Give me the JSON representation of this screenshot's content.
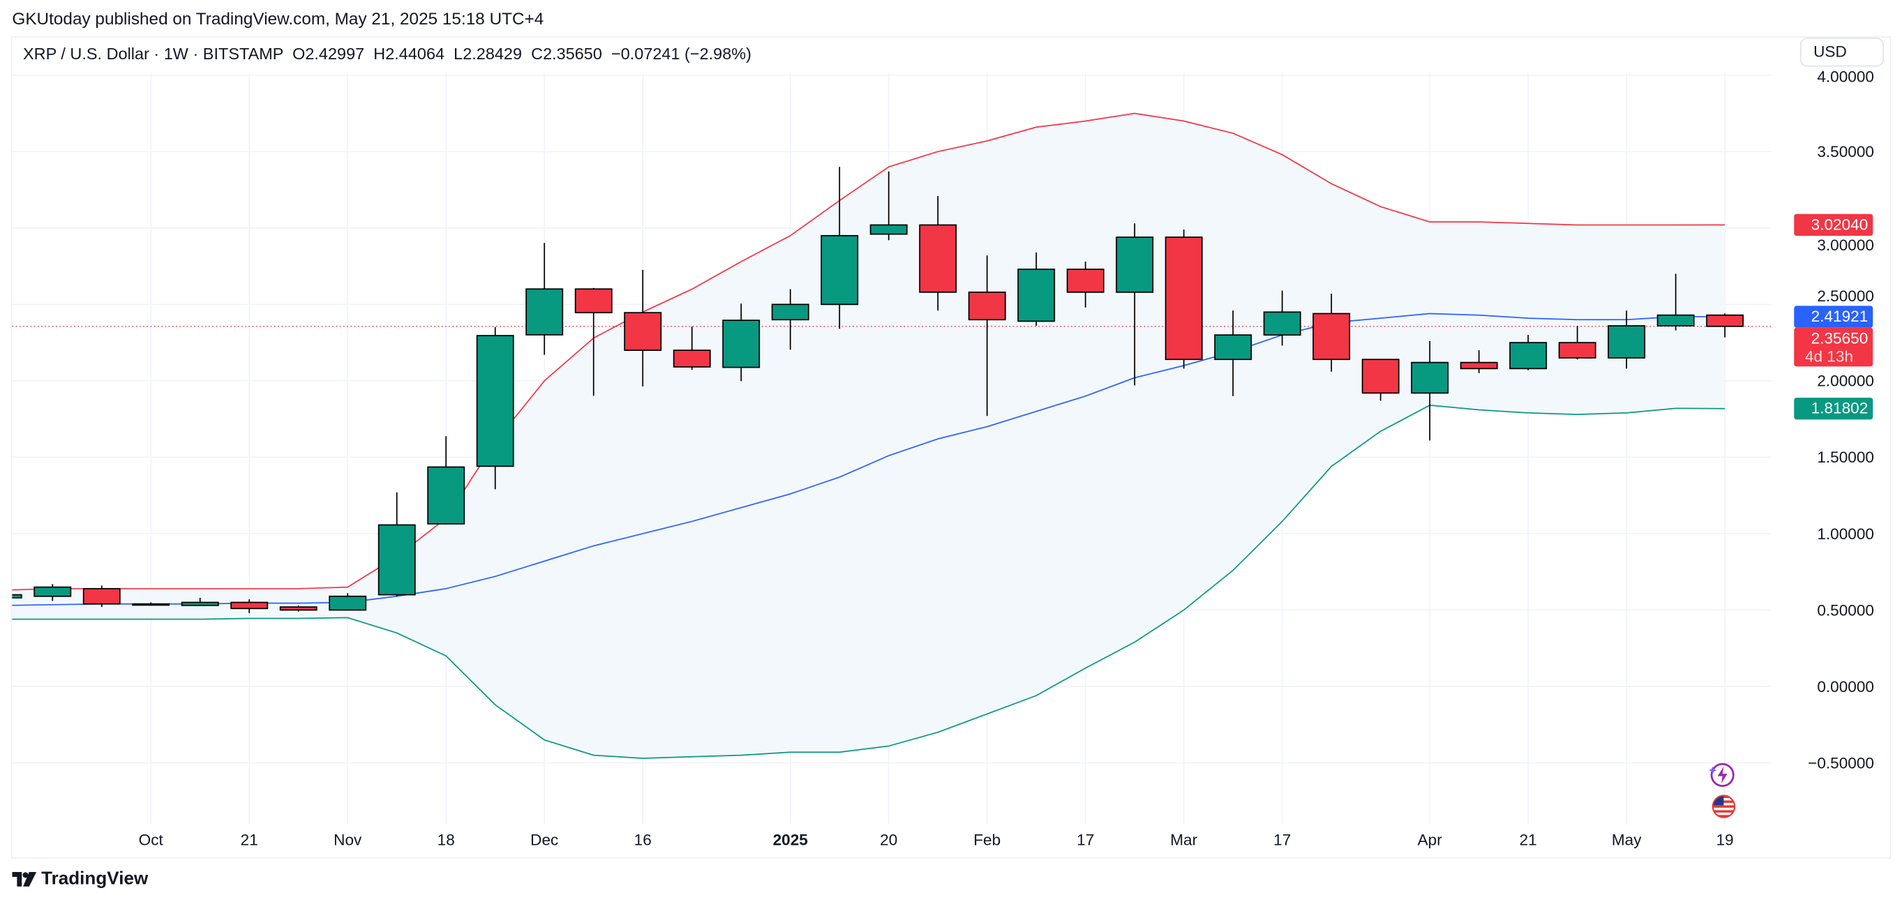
{
  "header": {
    "published": "GKUtoday published on TradingView.com, May 21, 2025 15:18 UTC+4"
  },
  "legend": {
    "symbol": "XRP / U.S. Dollar · 1W · BITSTAMP",
    "open": "O2.42997",
    "high": "H2.44064",
    "low": "L2.28429",
    "close": "C2.35650",
    "change": "−0.07241 (−2.98%)"
  },
  "currency_button": "USD",
  "footer": {
    "logo_text": "TradingView"
  },
  "icons": [
    "lightning-icon",
    "us-flag-icon",
    "tradingview-logo-icon"
  ],
  "colors": {
    "up": "#089981",
    "down": "#f23645",
    "upper_band": "#f23645",
    "middle_band": "#2962ff",
    "lower_band": "#089981",
    "band_fill": "#f3f8fd"
  },
  "chart_data": {
    "type": "candlestick",
    "title": "",
    "ylim": [
      -0.9,
      4.0
    ],
    "grid": true,
    "y_ticks": [
      "4.00000",
      "3.50000",
      "3.00000",
      "2.50000",
      "2.00000",
      "1.50000",
      "1.00000",
      "0.50000",
      "0.00000",
      "−0.50000"
    ],
    "y_tick_values": [
      4.0,
      3.5,
      3.0,
      2.5,
      2.0,
      1.5,
      1.0,
      0.5,
      0.0,
      -0.5
    ],
    "x_ticks": [
      {
        "label": "Oct",
        "week": "2024-10-07",
        "bold": false
      },
      {
        "label": "21",
        "week": "2024-10-21",
        "bold": false
      },
      {
        "label": "Nov",
        "week": "2024-11-04",
        "bold": false
      },
      {
        "label": "18",
        "week": "2024-11-18",
        "bold": false
      },
      {
        "label": "Dec",
        "week": "2024-12-02",
        "bold": false
      },
      {
        "label": "16",
        "week": "2024-12-16",
        "bold": false
      },
      {
        "label": "2025",
        "week": "2025-01-06",
        "bold": true
      },
      {
        "label": "20",
        "week": "2025-01-20",
        "bold": false
      },
      {
        "label": "Feb",
        "week": "2025-02-03",
        "bold": false
      },
      {
        "label": "17",
        "week": "2025-02-17",
        "bold": false
      },
      {
        "label": "Mar",
        "week": "2025-03-03",
        "bold": false
      },
      {
        "label": "17",
        "week": "2025-03-17",
        "bold": false
      },
      {
        "label": "Apr",
        "week": "2025-04-07",
        "bold": false
      },
      {
        "label": "21",
        "week": "2025-04-21",
        "bold": false
      },
      {
        "label": "May",
        "week": "2025-05-05",
        "bold": false
      },
      {
        "label": "19",
        "week": "2025-05-19",
        "bold": false
      }
    ],
    "weeks": [
      "2024-09-16",
      "2024-09-23",
      "2024-09-30",
      "2024-10-07",
      "2024-10-14",
      "2024-10-21",
      "2024-10-28",
      "2024-11-04",
      "2024-11-11",
      "2024-11-18",
      "2024-11-25",
      "2024-12-02",
      "2024-12-09",
      "2024-12-16",
      "2024-12-23",
      "2024-12-30",
      "2025-01-06",
      "2025-01-13",
      "2025-01-20",
      "2025-01-27",
      "2025-02-03",
      "2025-02-10",
      "2025-02-17",
      "2025-02-24",
      "2025-03-03",
      "2025-03-10",
      "2025-03-17",
      "2025-03-24",
      "2025-03-31",
      "2025-04-07",
      "2025-04-14",
      "2025-04-21",
      "2025-04-28",
      "2025-05-05",
      "2025-05-12",
      "2025-05-19"
    ],
    "ohlc_fields": [
      "open",
      "high",
      "low",
      "close"
    ],
    "ohlc": [
      [
        0.58,
        0.61,
        0.57,
        0.6
      ],
      [
        0.59,
        0.67,
        0.56,
        0.65
      ],
      [
        0.64,
        0.66,
        0.52,
        0.54
      ],
      [
        0.54,
        0.55,
        0.53,
        0.54
      ],
      [
        0.53,
        0.58,
        0.53,
        0.55
      ],
      [
        0.55,
        0.57,
        0.48,
        0.51
      ],
      [
        0.52,
        0.53,
        0.49,
        0.5
      ],
      [
        0.5,
        0.61,
        0.5,
        0.59
      ],
      [
        0.6,
        1.27,
        0.59,
        1.057
      ],
      [
        1.064,
        1.638,
        1.06,
        1.436
      ],
      [
        1.441,
        2.352,
        1.29,
        2.296
      ],
      [
        2.301,
        2.902,
        2.17,
        2.601
      ],
      [
        2.601,
        2.608,
        1.902,
        2.446
      ],
      [
        2.446,
        2.726,
        1.963,
        2.2
      ],
      [
        2.2,
        2.355,
        2.072,
        2.091
      ],
      [
        2.088,
        2.505,
        1.998,
        2.396
      ],
      [
        2.4,
        2.6,
        2.204,
        2.5
      ],
      [
        2.5,
        3.4,
        2.34,
        2.95
      ],
      [
        2.96,
        3.37,
        2.92,
        3.02
      ],
      [
        3.02,
        3.21,
        2.46,
        2.58
      ],
      [
        2.58,
        2.82,
        1.77,
        2.4
      ],
      [
        2.39,
        2.84,
        2.36,
        2.73
      ],
      [
        2.73,
        2.78,
        2.48,
        2.58
      ],
      [
        2.58,
        3.03,
        1.97,
        2.94
      ],
      [
        2.94,
        2.99,
        2.08,
        2.14
      ],
      [
        2.14,
        2.46,
        1.9,
        2.3
      ],
      [
        2.3,
        2.59,
        2.23,
        2.45
      ],
      [
        2.44,
        2.57,
        2.06,
        2.14
      ],
      [
        2.14,
        2.14,
        1.87,
        1.92
      ],
      [
        1.92,
        2.26,
        1.61,
        2.12
      ],
      [
        2.12,
        2.2,
        2.05,
        2.08
      ],
      [
        2.08,
        2.3,
        2.07,
        2.25
      ],
      [
        2.25,
        2.36,
        2.14,
        2.15
      ],
      [
        2.15,
        2.46,
        2.08,
        2.36
      ],
      [
        2.36,
        2.7,
        2.33,
        2.43
      ],
      [
        2.42997,
        2.44064,
        2.28429,
        2.3565
      ]
    ],
    "bollinger": {
      "upper": [
        0.63,
        0.64,
        0.64,
        0.64,
        0.64,
        0.64,
        0.64,
        0.65,
        0.85,
        1.1,
        1.6,
        2.0,
        2.28,
        2.45,
        2.6,
        2.78,
        2.95,
        3.18,
        3.4,
        3.5,
        3.57,
        3.66,
        3.7,
        3.75,
        3.7,
        3.62,
        3.48,
        3.29,
        3.14,
        3.04,
        3.04,
        3.03,
        3.02,
        3.02,
        3.02,
        3.0204
      ],
      "middle": [
        0.53,
        0.535,
        0.54,
        0.54,
        0.54,
        0.545,
        0.545,
        0.55,
        0.59,
        0.64,
        0.72,
        0.82,
        0.92,
        1.0,
        1.08,
        1.17,
        1.26,
        1.37,
        1.51,
        1.62,
        1.7,
        1.8,
        1.9,
        2.02,
        2.1,
        2.19,
        2.3,
        2.38,
        2.41,
        2.44,
        2.43,
        2.41,
        2.4,
        2.4,
        2.42,
        2.41921
      ],
      "lower": [
        0.44,
        0.44,
        0.44,
        0.44,
        0.44,
        0.445,
        0.445,
        0.45,
        0.35,
        0.2,
        -0.12,
        -0.35,
        -0.45,
        -0.47,
        -0.46,
        -0.45,
        -0.43,
        -0.43,
        -0.39,
        -0.3,
        -0.18,
        -0.06,
        0.12,
        0.29,
        0.5,
        0.76,
        1.08,
        1.44,
        1.67,
        1.84,
        1.81,
        1.79,
        1.78,
        1.79,
        1.82,
        1.81802
      ]
    },
    "price_labels": {
      "upper": {
        "text": "3.02040",
        "value": 3.0204,
        "color": "#f23645"
      },
      "middle": {
        "text": "2.41921",
        "value": 2.41921,
        "color": "#2962ff"
      },
      "last": {
        "text": "2.35650",
        "value": 2.3565,
        "color": "#f23645",
        "countdown": "4d 13h"
      },
      "lower": {
        "text": "1.81802",
        "value": 1.81802,
        "color": "#089981"
      }
    }
  }
}
